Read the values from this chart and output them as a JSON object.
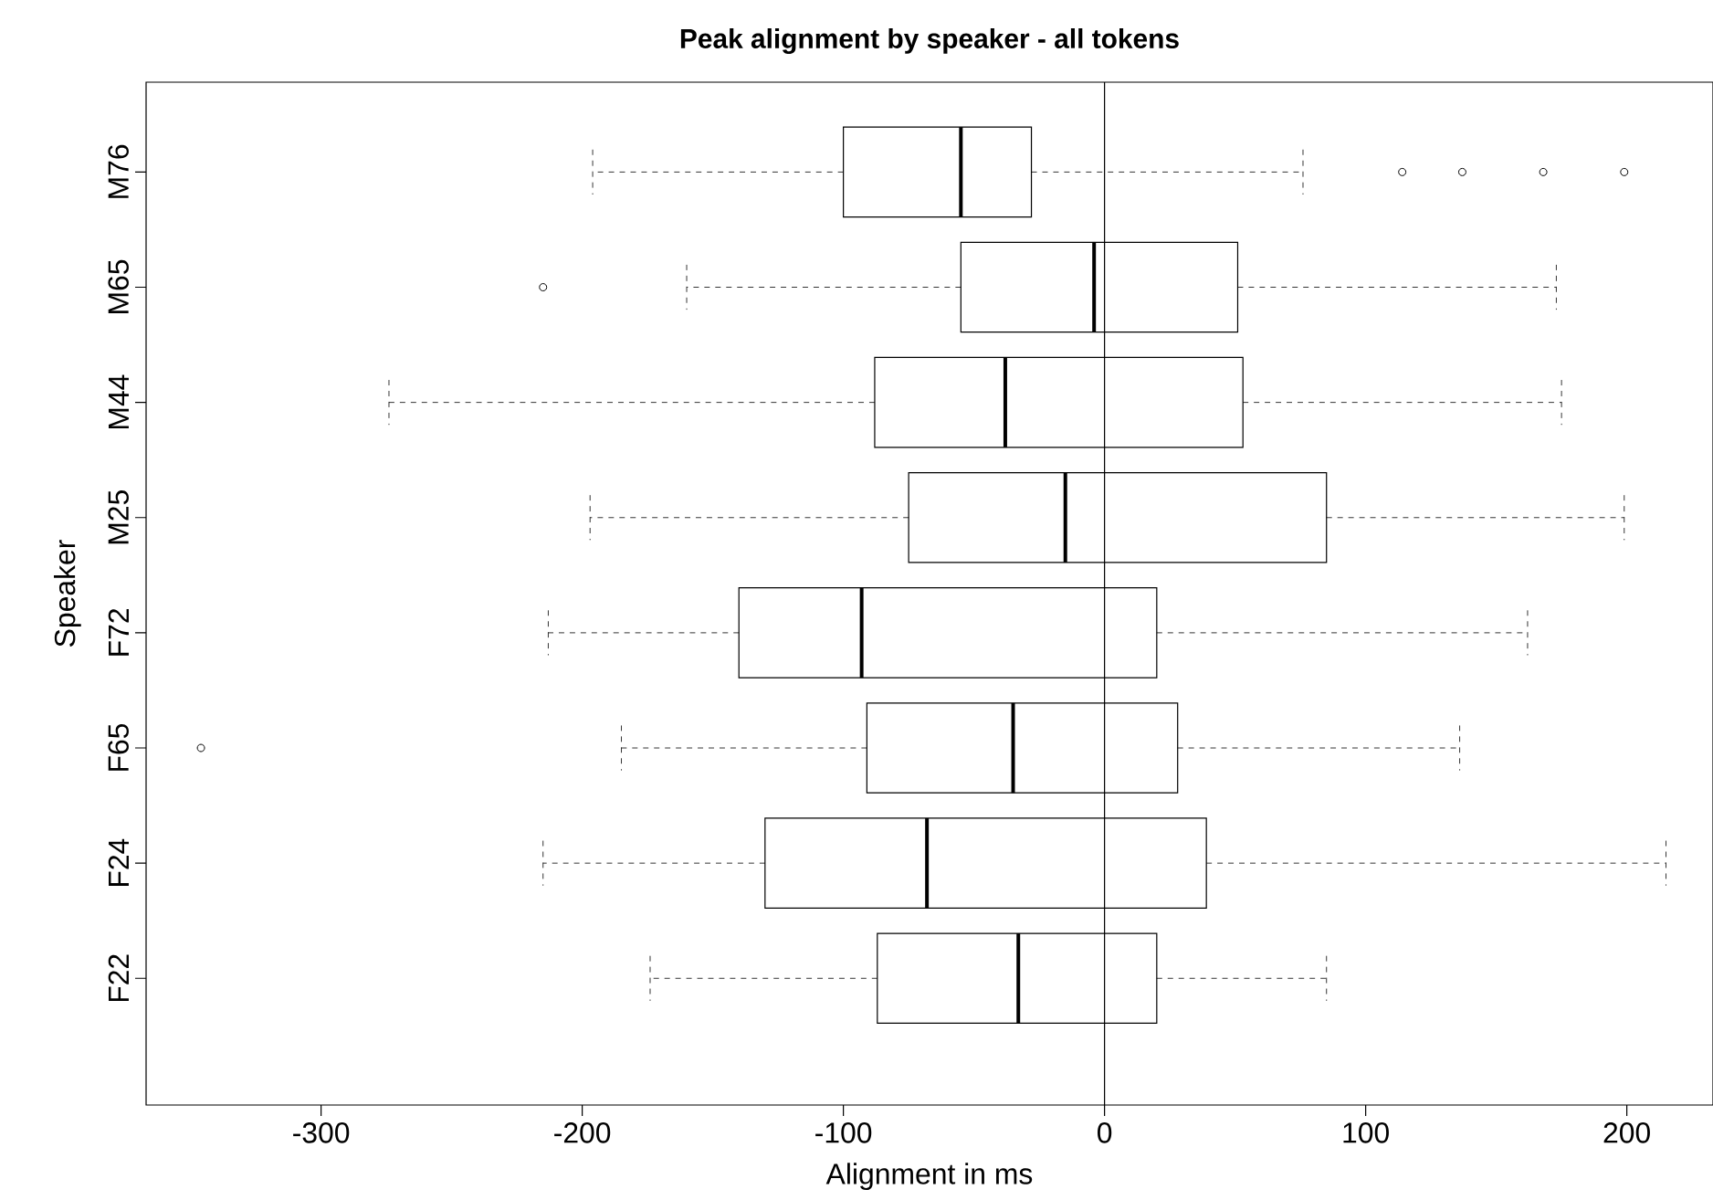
{
  "chart_data": {
    "type": "box",
    "orientation": "horizontal",
    "title": "Peak alignment by speaker - all tokens",
    "xlabel": "Alignment in ms",
    "ylabel": "Speaker",
    "categories": [
      "M76",
      "M65",
      "M44",
      "M25",
      "F72",
      "F65",
      "F24",
      "F22"
    ],
    "boxes": [
      {
        "low": -196,
        "q1": -100,
        "median": -55,
        "q3": -28,
        "high": 76,
        "outliers": [
          114,
          137,
          168,
          199
        ]
      },
      {
        "low": -160,
        "q1": -55,
        "median": -4,
        "q3": 51,
        "high": 173,
        "outliers": [
          -215
        ]
      },
      {
        "low": -274,
        "q1": -88,
        "median": -38,
        "q3": 53,
        "high": 175
      },
      {
        "low": -197,
        "q1": -75,
        "median": -15,
        "q3": 85,
        "high": 199
      },
      {
        "low": -213,
        "q1": -140,
        "median": -93,
        "q3": 20,
        "high": 162
      },
      {
        "low": -185,
        "q1": -91,
        "median": -35,
        "q3": 28,
        "high": 136,
        "outliers": [
          -346
        ]
      },
      {
        "low": -215,
        "q1": -130,
        "median": -68,
        "q3": 39,
        "high": 215
      },
      {
        "low": -174,
        "q1": -87,
        "median": -33,
        "q3": 20,
        "high": 85
      }
    ],
    "xlim": [
      -367,
      233
    ],
    "xticks": [
      -300,
      -200,
      -100,
      0,
      100,
      200
    ],
    "ref_lines": [
      {
        "axis": "x",
        "value": 0
      }
    ],
    "marker": "circle"
  }
}
